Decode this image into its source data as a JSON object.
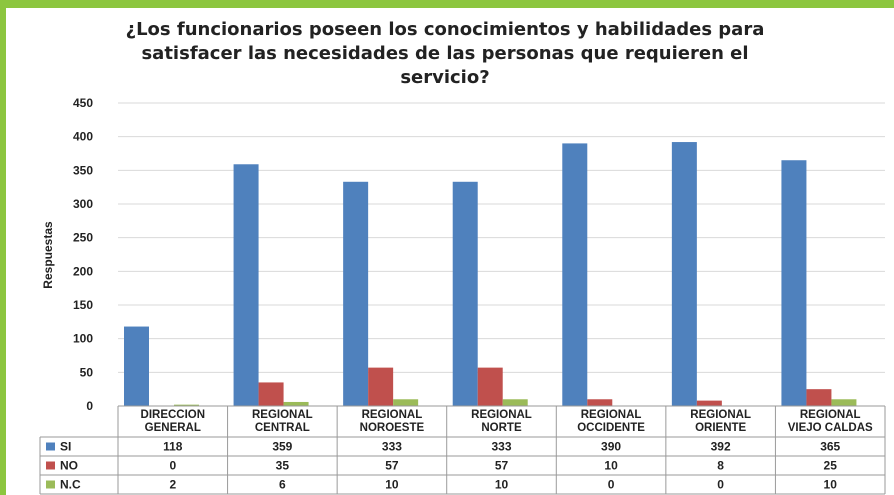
{
  "chart_data": {
    "type": "bar",
    "title_lines": [
      "¿Los funcionarios poseen los conocimientos y habilidades para",
      "satisfacer las necesidades de las personas que requieren el",
      "servicio?"
    ],
    "ylabel": "Respuestas",
    "ylim": [
      0,
      450
    ],
    "yticks": [
      0,
      50,
      100,
      150,
      200,
      250,
      300,
      350,
      400,
      450
    ],
    "grid": true,
    "legend": "data-table",
    "categories": [
      [
        "DIRECCION",
        "GENERAL"
      ],
      [
        "REGIONAL",
        "CENTRAL"
      ],
      [
        "REGIONAL",
        "NOROESTE"
      ],
      [
        "REGIONAL",
        "NORTE"
      ],
      [
        "REGIONAL",
        "OCCIDENTE"
      ],
      [
        "REGIONAL",
        "ORIENTE"
      ],
      [
        "REGIONAL",
        "VIEJO CALDAS"
      ]
    ],
    "series": [
      {
        "name": "SI",
        "color": "#4f81bd",
        "values": [
          118,
          359,
          333,
          333,
          390,
          392,
          365
        ]
      },
      {
        "name": "NO",
        "color": "#c0504d",
        "values": [
          0,
          35,
          57,
          57,
          10,
          8,
          25
        ]
      },
      {
        "name": "N.C",
        "color": "#9bbb59",
        "values": [
          2,
          6,
          10,
          10,
          0,
          0,
          10
        ]
      }
    ]
  }
}
